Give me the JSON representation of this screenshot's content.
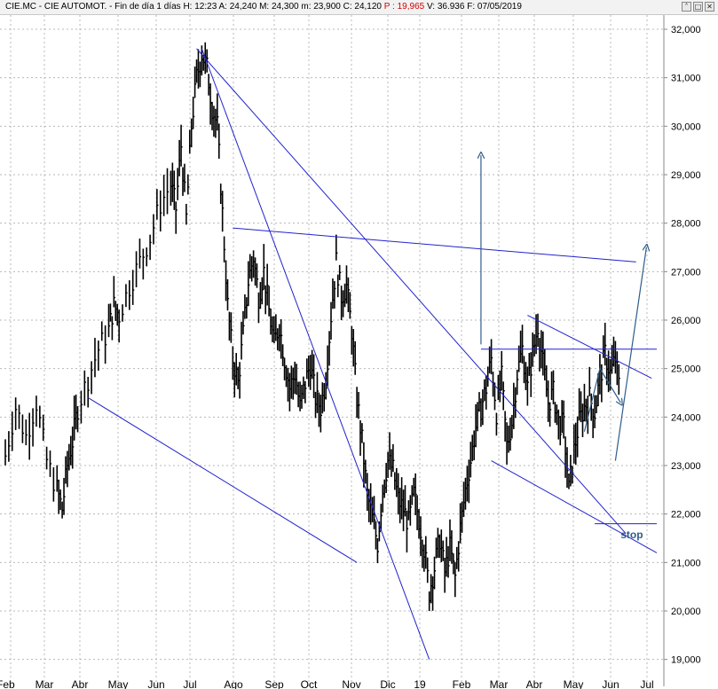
{
  "header": {
    "symbol": "CIE.MC - CIE AUTOMOT.",
    "period": "Fin de día 1 días",
    "high": "H: 12:23",
    "open": "A: 24,240",
    "max": "M: 24,300",
    "min": "m: 23,900",
    "close": "C: 24,120",
    "p": "P : 19,965",
    "volume": "V: 36.936",
    "date": "F: 07/05/2019",
    "icons": [
      "double-chevron-up-icon",
      "maximize-icon",
      "close-icon"
    ]
  },
  "colors": {
    "price": "#000000",
    "trendlines": "#2222cc",
    "arrows": "#2f5d8a",
    "grid": "#b8b8b8",
    "stop_label": "#2f5d8a",
    "header_red": "#d40000"
  },
  "chart_data": {
    "type": "line",
    "style": "ohlc-bars",
    "x": [
      "Feb",
      "Mar",
      "Abr",
      "May",
      "Jun",
      "Jul",
      "Ago",
      "Sep",
      "Oct",
      "Nov",
      "Dic",
      "19",
      "Feb",
      "Mar",
      "Abr",
      "May",
      "Jun",
      "Jul"
    ],
    "ylim": [
      19000,
      32000
    ],
    "yticks": [
      "19,000",
      "20,000",
      "21,000",
      "22,000",
      "23,000",
      "24,000",
      "25,000",
      "26,000",
      "27,000",
      "28,000",
      "29,000",
      "30,000",
      "31,000",
      "32,000"
    ],
    "ytick_values": [
      19000,
      20000,
      21000,
      22000,
      23000,
      24000,
      25000,
      26000,
      27000,
      28000,
      29000,
      30000,
      31000,
      32000
    ],
    "grid": true,
    "series": [
      {
        "values": [
          [
            0,
            23200
          ],
          [
            2,
            24200
          ],
          [
            4,
            23600
          ],
          [
            6,
            24300
          ],
          [
            8,
            23100
          ],
          [
            10,
            22500
          ],
          [
            11,
            22100
          ],
          [
            12,
            23000
          ],
          [
            13,
            23500
          ],
          [
            14,
            24200
          ],
          [
            16,
            24800
          ],
          [
            18,
            25400
          ],
          [
            20,
            25800
          ],
          [
            21,
            26300
          ],
          [
            22,
            26100
          ],
          [
            24,
            26700
          ],
          [
            26,
            27200
          ],
          [
            28,
            27700
          ],
          [
            30,
            28400
          ],
          [
            32,
            28800
          ],
          [
            33,
            28300
          ],
          [
            34,
            29600
          ],
          [
            35,
            28100
          ],
          [
            36,
            30000
          ],
          [
            37,
            31000
          ],
          [
            38,
            31500
          ],
          [
            39,
            31200
          ],
          [
            40,
            30400
          ],
          [
            41,
            30000
          ],
          [
            42,
            28200
          ],
          [
            43,
            26300
          ],
          [
            44,
            25200
          ],
          [
            45,
            24700
          ],
          [
            46,
            25700
          ],
          [
            47,
            26800
          ],
          [
            48,
            27300
          ],
          [
            49,
            26500
          ],
          [
            50,
            27000
          ],
          [
            51,
            26200
          ],
          [
            52,
            25500
          ],
          [
            53,
            25900
          ],
          [
            54,
            25200
          ],
          [
            55,
            24600
          ],
          [
            56,
            24900
          ],
          [
            57,
            24200
          ],
          [
            58,
            24700
          ],
          [
            59,
            25100
          ],
          [
            60,
            24400
          ],
          [
            61,
            24200
          ],
          [
            62,
            24800
          ],
          [
            63,
            26100
          ],
          [
            64,
            27200
          ],
          [
            65,
            26500
          ],
          [
            66,
            26700
          ],
          [
            67,
            25800
          ],
          [
            68,
            24400
          ],
          [
            69,
            23500
          ],
          [
            70,
            22400
          ],
          [
            71,
            21900
          ],
          [
            72,
            21400
          ],
          [
            73,
            22500
          ],
          [
            74,
            23100
          ],
          [
            75,
            22900
          ],
          [
            76,
            22300
          ],
          [
            77,
            22100
          ],
          [
            78,
            21800
          ],
          [
            79,
            22400
          ],
          [
            80,
            21900
          ],
          [
            81,
            21300
          ],
          [
            82,
            20400
          ],
          [
            83,
            20900
          ],
          [
            84,
            21500
          ],
          [
            85,
            20800
          ],
          [
            86,
            21300
          ],
          [
            87,
            20700
          ],
          [
            88,
            21700
          ],
          [
            89,
            22500
          ],
          [
            90,
            23100
          ],
          [
            91,
            23800
          ],
          [
            92,
            24200
          ],
          [
            93,
            24600
          ],
          [
            94,
            25200
          ],
          [
            95,
            24100
          ],
          [
            96,
            24800
          ],
          [
            97,
            23400
          ],
          [
            98,
            23900
          ],
          [
            99,
            24900
          ],
          [
            100,
            25400
          ],
          [
            101,
            24600
          ],
          [
            102,
            25300
          ],
          [
            103,
            25900
          ],
          [
            104,
            25100
          ],
          [
            105,
            24300
          ],
          [
            106,
            24500
          ],
          [
            107,
            23900
          ],
          [
            108,
            23800
          ],
          [
            109,
            22500
          ],
          [
            110,
            23300
          ],
          [
            111,
            23900
          ],
          [
            112,
            24200
          ],
          [
            113,
            24400
          ],
          [
            114,
            24100
          ],
          [
            115,
            24800
          ],
          [
            116,
            25300
          ],
          [
            117,
            24900
          ],
          [
            118,
            25200
          ],
          [
            119,
            24400
          ]
        ]
      }
    ],
    "annotations": [
      {
        "type": "trendline",
        "from": [
          38,
          31600
        ],
        "to": [
          82,
          19000
        ]
      },
      {
        "type": "trendline",
        "from": [
          16,
          24400
        ],
        "to": [
          68,
          21000
        ]
      },
      {
        "type": "trendline",
        "from": [
          37,
          31600
        ],
        "to": [
          120,
          21600
        ]
      },
      {
        "type": "trendline",
        "from": [
          44,
          27900
        ],
        "to": [
          122,
          27200
        ]
      },
      {
        "type": "trendline",
        "from": [
          101,
          26100
        ],
        "to": [
          125,
          24800
        ]
      },
      {
        "type": "hline",
        "from": [
          92,
          25400
        ],
        "to": [
          126,
          25400
        ]
      },
      {
        "type": "trendline",
        "from": [
          94,
          23100
        ],
        "to": [
          126,
          21200
        ]
      },
      {
        "type": "hline",
        "from": [
          114,
          21800
        ],
        "to": [
          126,
          21800
        ]
      },
      {
        "type": "arrow",
        "from": [
          92,
          25500
        ],
        "to": [
          92,
          29400
        ]
      },
      {
        "type": "arrow",
        "from": [
          112,
          23700
        ],
        "to": [
          119,
          24300
        ],
        "via": [
          [
            115,
            25000
          ]
        ]
      },
      {
        "type": "arrow",
        "from": [
          118,
          23100
        ],
        "to": [
          124,
          27500
        ],
        "via": []
      },
      {
        "type": "text",
        "at": [
          119,
          21650
        ],
        "text": "stop"
      }
    ]
  }
}
